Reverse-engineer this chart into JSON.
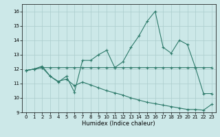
{
  "title": "",
  "xlabel": "Humidex (Indice chaleur)",
  "background_color": "#cce8e8",
  "grid_color": "#aacccc",
  "line_color": "#2d7a6a",
  "xlim": [
    -0.5,
    23.5
  ],
  "ylim": [
    9,
    16.5
  ],
  "yticks": [
    9,
    10,
    11,
    12,
    13,
    14,
    15,
    16
  ],
  "xticks": [
    0,
    1,
    2,
    3,
    4,
    5,
    6,
    7,
    8,
    9,
    10,
    11,
    12,
    13,
    14,
    15,
    16,
    17,
    18,
    19,
    20,
    21,
    22,
    23
  ],
  "series1_x": [
    0,
    1,
    2,
    3,
    4,
    5,
    6,
    7,
    8,
    9,
    10,
    11,
    12,
    13,
    14,
    15,
    16,
    17,
    18,
    19,
    20,
    21,
    22,
    23
  ],
  "series1_y": [
    11.9,
    12.0,
    12.1,
    12.1,
    12.1,
    12.1,
    12.1,
    12.1,
    12.1,
    12.1,
    12.1,
    12.1,
    12.1,
    12.1,
    12.1,
    12.1,
    12.1,
    12.1,
    12.1,
    12.1,
    12.1,
    12.1,
    12.1,
    12.1
  ],
  "series2_x": [
    0,
    1,
    2,
    3,
    4,
    5,
    6,
    7,
    8,
    9,
    10,
    11,
    12,
    13,
    14,
    15,
    16,
    17,
    18,
    19,
    20,
    21,
    22,
    23
  ],
  "series2_y": [
    11.9,
    12.0,
    12.2,
    11.5,
    11.1,
    11.5,
    10.4,
    12.6,
    12.6,
    13.0,
    13.3,
    12.1,
    12.5,
    13.5,
    14.3,
    15.3,
    16.0,
    13.5,
    13.1,
    14.0,
    13.7,
    12.1,
    10.3,
    10.3
  ],
  "series3_x": [
    0,
    1,
    2,
    3,
    4,
    5,
    6,
    7,
    8,
    9,
    10,
    11,
    12,
    13,
    14,
    15,
    16,
    17,
    18,
    19,
    20,
    21,
    22,
    23
  ],
  "series3_y": [
    11.9,
    12.0,
    12.1,
    11.5,
    11.15,
    11.3,
    10.85,
    11.1,
    10.9,
    10.7,
    10.5,
    10.35,
    10.2,
    10.0,
    9.85,
    9.7,
    9.6,
    9.5,
    9.4,
    9.3,
    9.2,
    9.2,
    9.15,
    9.55
  ]
}
